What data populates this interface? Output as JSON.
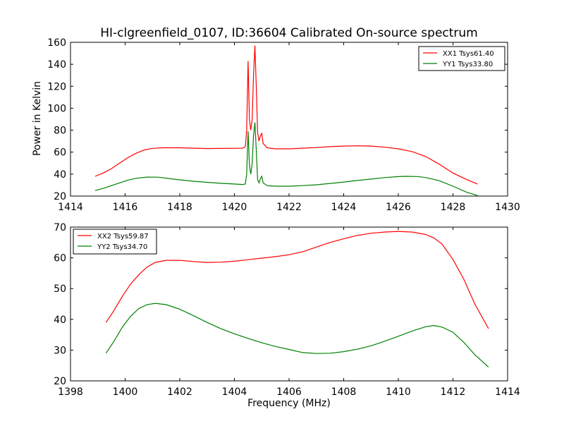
{
  "chart_data": [
    {
      "type": "line",
      "title": "HI-clgreenfield_0107, ID:36604 Calibrated On-source spectrum",
      "xlabel": "",
      "ylabel": "Power in Kelvin",
      "xlim": [
        1414,
        1430
      ],
      "ylim": [
        20,
        160
      ],
      "xticks": [
        "1414",
        "1416",
        "1418",
        "1420",
        "1422",
        "1424",
        "1426",
        "1428",
        "1430"
      ],
      "yticks": [
        "20",
        "40",
        "60",
        "80",
        "100",
        "120",
        "140",
        "160"
      ],
      "legend_position": "top-right",
      "grid": false,
      "series": [
        {
          "name": "XX1 Tsys61.40",
          "color": "#ff0000",
          "points": [
            [
              1414.9,
              38
            ],
            [
              1415.2,
              41
            ],
            [
              1415.5,
              45
            ],
            [
              1415.8,
              50
            ],
            [
              1416.1,
              55
            ],
            [
              1416.4,
              59
            ],
            [
              1416.7,
              62
            ],
            [
              1417.0,
              63.5
            ],
            [
              1417.4,
              64
            ],
            [
              1418.0,
              64
            ],
            [
              1418.5,
              63.6
            ],
            [
              1419.0,
              63.3
            ],
            [
              1419.5,
              63.4
            ],
            [
              1420.0,
              63.5
            ],
            [
              1420.3,
              63.6
            ],
            [
              1420.4,
              65
            ],
            [
              1420.45,
              80
            ],
            [
              1420.5,
              143
            ],
            [
              1420.55,
              90
            ],
            [
              1420.6,
              80
            ],
            [
              1420.65,
              90
            ],
            [
              1420.7,
              130
            ],
            [
              1420.75,
              157
            ],
            [
              1420.8,
              120
            ],
            [
              1420.85,
              78
            ],
            [
              1420.9,
              70
            ],
            [
              1420.95,
              75
            ],
            [
              1421.0,
              77
            ],
            [
              1421.05,
              68
            ],
            [
              1421.2,
              64
            ],
            [
              1421.5,
              63
            ],
            [
              1422.0,
              63
            ],
            [
              1422.5,
              63.6
            ],
            [
              1423.0,
              64.2
            ],
            [
              1423.5,
              65
            ],
            [
              1424.0,
              65.5
            ],
            [
              1424.5,
              65.8
            ],
            [
              1425.0,
              65.5
            ],
            [
              1425.5,
              64.5
            ],
            [
              1426.0,
              63
            ],
            [
              1426.5,
              60.5
            ],
            [
              1427.0,
              56
            ],
            [
              1427.5,
              49
            ],
            [
              1428.0,
              41
            ],
            [
              1428.5,
              35
            ],
            [
              1428.9,
              31
            ]
          ]
        },
        {
          "name": "YY1 Tsys33.80",
          "color": "#008000",
          "points": [
            [
              1414.9,
              25
            ],
            [
              1415.2,
              27
            ],
            [
              1415.5,
              29.5
            ],
            [
              1415.8,
              32
            ],
            [
              1416.1,
              34.5
            ],
            [
              1416.4,
              36.2
            ],
            [
              1416.8,
              37.3
            ],
            [
              1417.2,
              37.2
            ],
            [
              1417.6,
              36
            ],
            [
              1418.0,
              34.8
            ],
            [
              1418.5,
              33.5
            ],
            [
              1419.0,
              32.5
            ],
            [
              1419.5,
              31.6
            ],
            [
              1420.0,
              31
            ],
            [
              1420.3,
              30.5
            ],
            [
              1420.4,
              31
            ],
            [
              1420.45,
              40
            ],
            [
              1420.5,
              79
            ],
            [
              1420.55,
              48
            ],
            [
              1420.6,
              40
            ],
            [
              1420.65,
              50
            ],
            [
              1420.7,
              75
            ],
            [
              1420.75,
              87
            ],
            [
              1420.8,
              62
            ],
            [
              1420.85,
              35
            ],
            [
              1420.9,
              32
            ],
            [
              1420.95,
              36
            ],
            [
              1421.0,
              38
            ],
            [
              1421.05,
              32
            ],
            [
              1421.2,
              29.5
            ],
            [
              1421.5,
              29
            ],
            [
              1422.0,
              29
            ],
            [
              1422.5,
              29.5
            ],
            [
              1423.0,
              30.3
            ],
            [
              1423.5,
              31.5
            ],
            [
              1424.0,
              32.8
            ],
            [
              1424.5,
              34.2
            ],
            [
              1425.0,
              35.5
            ],
            [
              1425.5,
              36.8
            ],
            [
              1426.0,
              37.7
            ],
            [
              1426.3,
              38
            ],
            [
              1426.7,
              37.8
            ],
            [
              1427.0,
              36.9
            ],
            [
              1427.5,
              34
            ],
            [
              1428.0,
              29
            ],
            [
              1428.5,
              23.5
            ],
            [
              1428.9,
              20.5
            ]
          ]
        }
      ]
    },
    {
      "type": "line",
      "title": "",
      "xlabel": "Frequency (MHz)",
      "ylabel": "",
      "xlim": [
        1398,
        1414
      ],
      "ylim": [
        20,
        70
      ],
      "xticks": [
        "1398",
        "1400",
        "1402",
        "1404",
        "1406",
        "1408",
        "1410",
        "1412",
        "1414"
      ],
      "yticks": [
        "20",
        "30",
        "40",
        "50",
        "60",
        "70"
      ],
      "legend_position": "top-left",
      "grid": false,
      "series": [
        {
          "name": "XX2 Tsys59.87",
          "color": "#ff0000",
          "points": [
            [
              1399.3,
              39
            ],
            [
              1399.6,
              43
            ],
            [
              1399.9,
              47.5
            ],
            [
              1400.2,
              51.5
            ],
            [
              1400.5,
              54.5
            ],
            [
              1400.8,
              57
            ],
            [
              1401.1,
              58.5
            ],
            [
              1401.5,
              59.2
            ],
            [
              1402.0,
              59.2
            ],
            [
              1402.5,
              58.8
            ],
            [
              1403.0,
              58.5
            ],
            [
              1403.5,
              58.6
            ],
            [
              1404.0,
              58.9
            ],
            [
              1404.5,
              59.4
            ],
            [
              1405.0,
              59.9
            ],
            [
              1405.5,
              60.4
            ],
            [
              1406.0,
              61
            ],
            [
              1406.5,
              62
            ],
            [
              1407.0,
              63.5
            ],
            [
              1407.5,
              65
            ],
            [
              1408.0,
              66.2
            ],
            [
              1408.5,
              67.3
            ],
            [
              1409.0,
              68
            ],
            [
              1409.5,
              68.4
            ],
            [
              1410.0,
              68.6
            ],
            [
              1410.5,
              68.4
            ],
            [
              1411.0,
              67.6
            ],
            [
              1411.3,
              66.5
            ],
            [
              1411.6,
              64.5
            ],
            [
              1412.0,
              59.5
            ],
            [
              1412.4,
              53
            ],
            [
              1412.8,
              45
            ],
            [
              1413.3,
              37
            ]
          ]
        },
        {
          "name": "YY2 Tsys34.70",
          "color": "#008000",
          "points": [
            [
              1399.3,
              29
            ],
            [
              1399.6,
              33
            ],
            [
              1399.9,
              37.5
            ],
            [
              1400.2,
              41
            ],
            [
              1400.5,
              43.5
            ],
            [
              1400.8,
              44.8
            ],
            [
              1401.1,
              45.2
            ],
            [
              1401.5,
              44.8
            ],
            [
              1402.0,
              43.3
            ],
            [
              1402.5,
              41.2
            ],
            [
              1403.0,
              39
            ],
            [
              1403.5,
              37
            ],
            [
              1404.0,
              35.3
            ],
            [
              1404.5,
              33.8
            ],
            [
              1405.0,
              32.4
            ],
            [
              1405.5,
              31.2
            ],
            [
              1406.0,
              30.2
            ],
            [
              1406.5,
              29.2
            ],
            [
              1407.0,
              28.9
            ],
            [
              1407.5,
              29
            ],
            [
              1408.0,
              29.5
            ],
            [
              1408.5,
              30.3
            ],
            [
              1409.0,
              31.4
            ],
            [
              1409.5,
              32.9
            ],
            [
              1410.0,
              34.5
            ],
            [
              1410.5,
              36.2
            ],
            [
              1411.0,
              37.6
            ],
            [
              1411.3,
              38
            ],
            [
              1411.6,
              37.5
            ],
            [
              1412.0,
              35.8
            ],
            [
              1412.4,
              32.5
            ],
            [
              1412.8,
              28.5
            ],
            [
              1413.3,
              24.5
            ]
          ]
        }
      ]
    }
  ]
}
